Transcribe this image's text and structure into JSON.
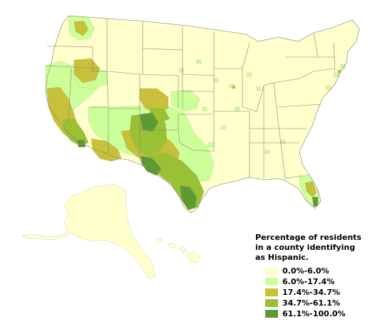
{
  "map": {
    "legend": {
      "title_line1": "Percentage of residents",
      "title_line2": "in a county identifying",
      "title_line3": "as Hispanic.",
      "items": [
        {
          "label": "0.0%-6.0%",
          "color": "#ffffcc"
        },
        {
          "label": "6.0%-17.4%",
          "color": "#ccff99"
        },
        {
          "label": "17.4%-34.7%",
          "color": "#c8c03a"
        },
        {
          "label": "34.7%-61.1%",
          "color": "#99c133"
        },
        {
          "label": "61.1%-100.0%",
          "color": "#5c9a33"
        }
      ]
    },
    "base_color": "#ffffcc"
  }
}
